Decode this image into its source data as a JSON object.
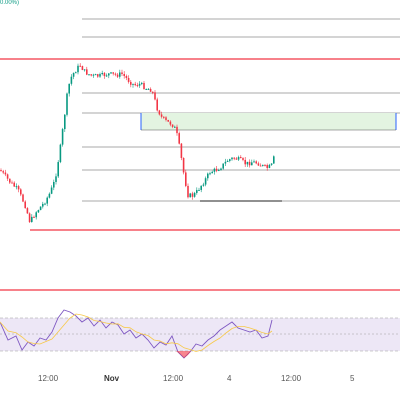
{
  "header": {
    "change_text": "0.00%)"
  },
  "x_axis": {
    "labels": [
      {
        "text": "12:00",
        "bold": false
      },
      {
        "text": "Nov",
        "bold": true
      },
      {
        "text": "12:00",
        "bold": false
      },
      {
        "text": "4",
        "bold": false
      },
      {
        "text": "12:00",
        "bold": false
      },
      {
        "text": "5",
        "bold": false
      }
    ]
  },
  "colors": {
    "up": "#089981",
    "down": "#f23645",
    "level_line": "#f23645",
    "fib_line": "#555555",
    "fib_zone_fill": "#e3f4e1",
    "fib_zone_border": "#2962ff",
    "rsi_line": "#7e57c2",
    "rsi_ma": "#f7c948",
    "rsi_band": "#ede7f6",
    "rsi_oversold": "#f23645"
  },
  "icons": [
    "crosshair-cursor-icon"
  ],
  "chart_data": {
    "type": "candlestick",
    "title": "",
    "xlabel": "",
    "ylabel": "",
    "x_ticks": [
      "12:00",
      "Nov",
      "12:00",
      "4",
      "12:00",
      "5"
    ],
    "horizontal_levels": [
      "resistance",
      "support",
      "lower-support"
    ],
    "fib_levels": 6,
    "fib_zone": "highlighted",
    "rsi": {
      "visible": true,
      "bands": [
        70,
        30
      ],
      "moving_average": true
    },
    "grid": false
  }
}
